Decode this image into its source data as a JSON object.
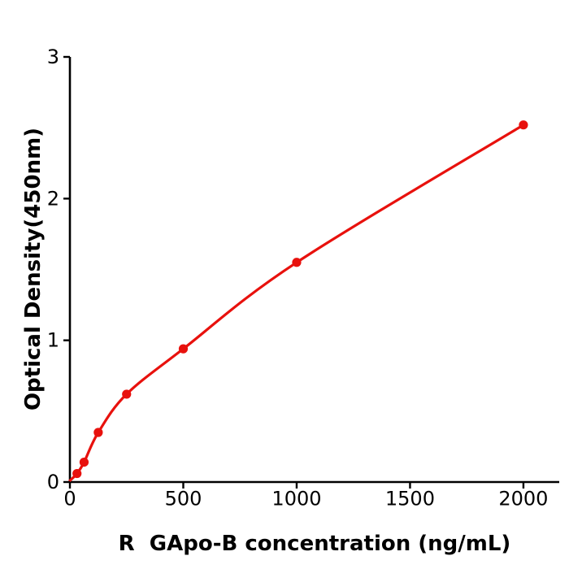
{
  "figure": {
    "background_color": "#ffffff",
    "axis_color": "#000000"
  },
  "chart_data": {
    "type": "scatter",
    "title": "",
    "xlabel": "R  GApo-B concentration (ng/mL)",
    "ylabel": "Optical Density(450nm)",
    "series": [
      {
        "name": "standard-curve",
        "color": "#e8110d",
        "marker": "circle",
        "x": [
          31.25,
          62.5,
          125,
          250,
          500,
          1000,
          2000
        ],
        "y": [
          0.06,
          0.14,
          0.35,
          0.62,
          0.94,
          1.55,
          2.52
        ]
      }
    ],
    "fit_curve_start": {
      "x": 0,
      "y": 0.01
    },
    "xticks": [
      0,
      500,
      1000,
      1500,
      2000
    ],
    "yticks": [
      0,
      1,
      2,
      3
    ],
    "xlim": [
      0,
      2158
    ],
    "ylim": [
      0,
      3
    ],
    "grid": false,
    "legend": "none"
  }
}
